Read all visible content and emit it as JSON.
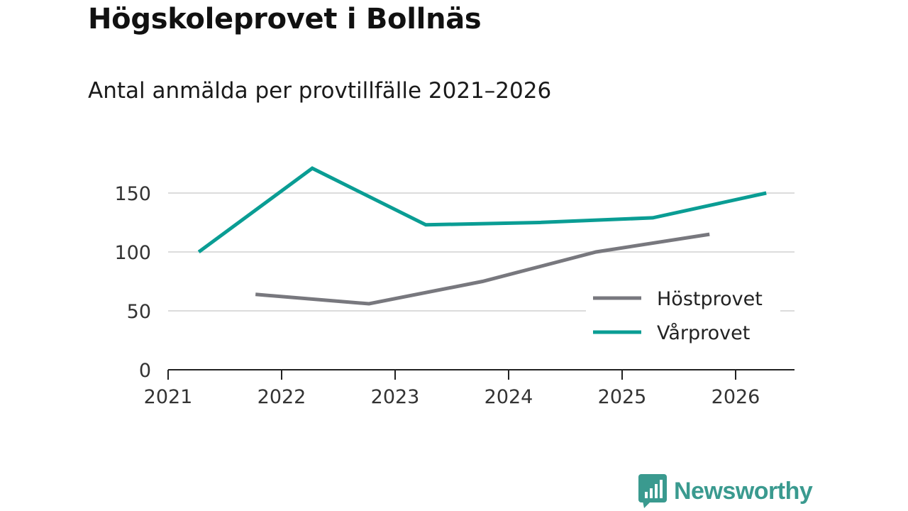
{
  "header": {
    "title": "Högskoleprovet i Bollnäs",
    "subtitle": "Antal anmälda per provtillfälle 2021–2026"
  },
  "chart_data": {
    "type": "line",
    "title": "Högskoleprovet i Bollnäs",
    "subtitle": "Antal anmälda per provtillfälle 2021–2026",
    "xlabel": "",
    "ylabel": "",
    "xlim": [
      2021,
      2026.55
    ],
    "ylim": [
      0,
      175
    ],
    "x_ticks": [
      "2021",
      "2022",
      "2023",
      "2024",
      "2025",
      "2026"
    ],
    "y_ticks": [
      "0",
      "50",
      "100",
      "150"
    ],
    "grid": true,
    "legend_position": "bottom-right",
    "series": [
      {
        "name": "Höstprovet",
        "color": "#78787e",
        "x": [
          2021.77,
          2022.77,
          2023.77,
          2024.77,
          2025.77
        ],
        "y": [
          64,
          56,
          75,
          100,
          115
        ]
      },
      {
        "name": "Vårprovet",
        "color": "#0a9d94",
        "x": [
          2021.27,
          2022.27,
          2023.27,
          2024.27,
          2025.27,
          2026.27
        ],
        "y": [
          100,
          171,
          123,
          125,
          129,
          150
        ]
      }
    ]
  },
  "branding": {
    "logo_text": "Newsworthy",
    "logo_color": "#3a9a8f"
  }
}
